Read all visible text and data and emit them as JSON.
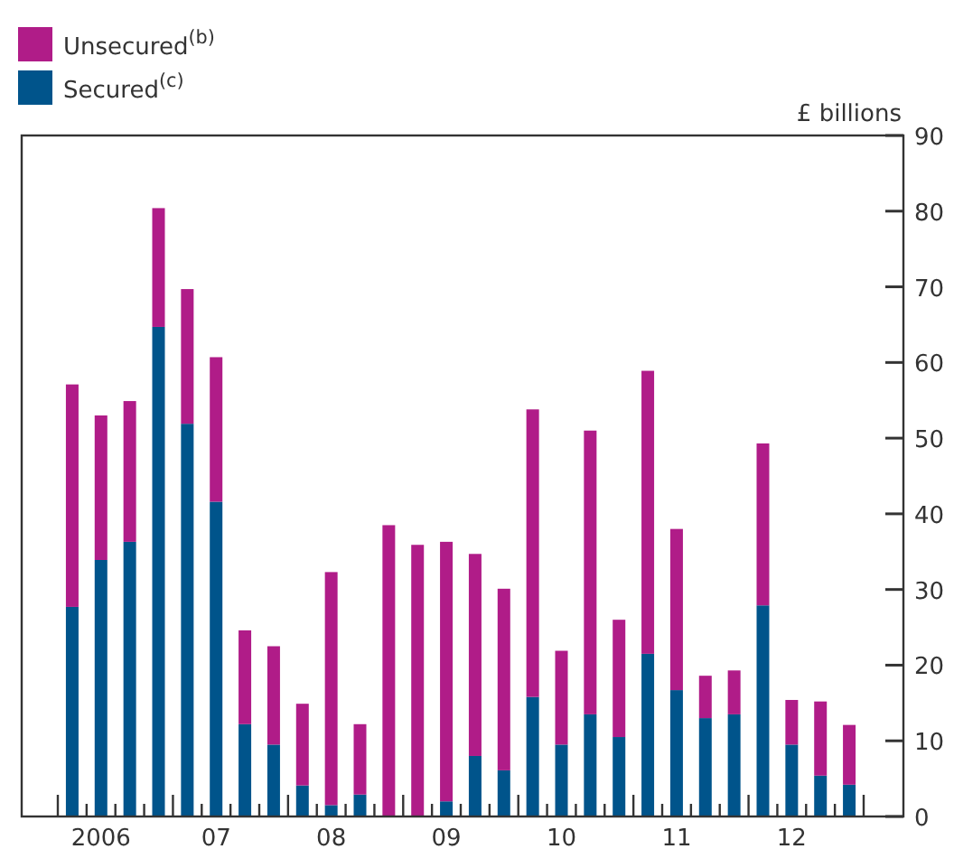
{
  "chart_data": {
    "type": "bar",
    "stacked": true,
    "ylabel": "£ billions",
    "legend": "top left",
    "grid": false,
    "categories": [
      null,
      "2006",
      null,
      null,
      null,
      "07",
      null,
      null,
      null,
      "08",
      null,
      null,
      null,
      "09",
      null,
      null,
      null,
      "10",
      null,
      null,
      null,
      "11",
      null,
      null,
      null,
      "12",
      null,
      null
    ],
    "ylim": [
      0,
      90
    ],
    "yticks": [
      0,
      10,
      20,
      30,
      40,
      50,
      60,
      70,
      80,
      90
    ],
    "series": [
      {
        "name": "Secured$^{(c)}$",
        "color": "#00548b",
        "values": [
          27.7,
          33.9,
          36.3,
          64.7,
          51.9,
          41.6,
          12.2,
          9.5,
          4.1,
          1.5,
          2.9,
          0,
          0,
          2.0,
          8.0,
          6.1,
          15.8,
          9.5,
          13.5,
          10.5,
          21.5,
          16.7,
          13.0,
          13.5,
          27.9,
          9.5,
          5.4,
          4.2
        ]
      },
      {
        "name": "Unsecured$^{(b)}$",
        "color": "#b01c88",
        "values": [
          29.4,
          19.1,
          18.6,
          15.7,
          17.8,
          19.1,
          12.4,
          13.0,
          10.8,
          30.8,
          9.3,
          38.5,
          35.9,
          34.3,
          26.7,
          24.0,
          38.0,
          12.4,
          37.5,
          15.5,
          37.4,
          21.3,
          5.6,
          5.8,
          21.4,
          5.9,
          9.8,
          7.9
        ]
      }
    ]
  }
}
